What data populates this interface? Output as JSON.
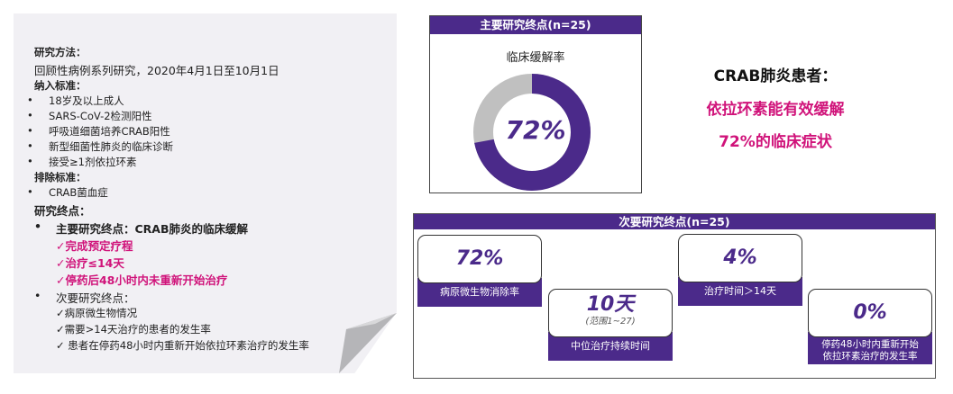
{
  "left": {
    "method_title": "研究方法：",
    "method_text": "回顾性病例系列研究，2020年4月1日至10月1日",
    "inclusion_title": "纳入标准：",
    "inclusion_items": [
      "18岁及以上成人",
      "SARS-CoV-2检测阳性",
      "呼吸道细菌培养CRAB阳性",
      "新型细菌性肺炎的临床诊断",
      "接受≥1剂依拉环素"
    ],
    "exclusion_title": "排除标准：",
    "exclusion_items": [
      "CRAB菌血症"
    ],
    "endpoints_title": "研究终点：",
    "primary": "主要研究终点：CRAB肺炎的临床缓解",
    "primary_items": [
      "✓完成预定疗程",
      "✓治疗≤14天",
      "✓停药后48小时内未重新开始治疗"
    ],
    "secondary": "次要研究终点：",
    "secondary_items": [
      "✓病原微生物情况",
      "✓需要>14天治疗的患者的发生率",
      "✓ 患者在停药48小时内重新开始依拉环素治疗的发生率"
    ]
  },
  "primary_box": {
    "header": "主要研究终点(n=25)",
    "label": "临床缓解率",
    "value_text": "72%",
    "value": 72,
    "colors": {
      "fill": "#4b2a8a",
      "rest": "#c0c0c0"
    }
  },
  "conclusion": {
    "line1": "CRAB肺炎患者：",
    "line2": "依拉环素能有效缓解",
    "line3": "72%的临床症状",
    "accent": "#d0137a"
  },
  "secondary_box": {
    "header": "次要研究终点(n=25)",
    "cards": [
      {
        "value": "72%",
        "sub": "",
        "label": "病原微生物消除率"
      },
      {
        "value": "10天",
        "sub": "(范围1~27)",
        "label": "中位治疗持续时间"
      },
      {
        "value": "4%",
        "sub": "",
        "label": "治疗时间＞14天"
      },
      {
        "value": "0%",
        "sub": "",
        "label": "停药48小时内重新开始依拉环素治疗的发生率"
      }
    ]
  }
}
